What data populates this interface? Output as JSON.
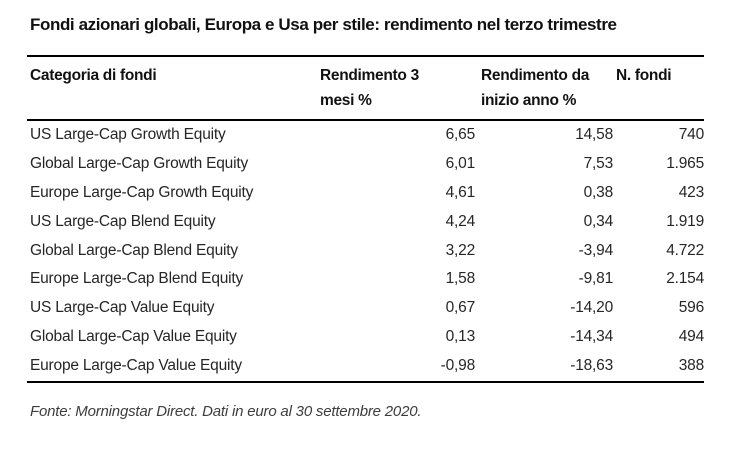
{
  "title": "Fondi azionari globali, Europa e Usa per stile: rendimento nel terzo trimestre",
  "table": {
    "columns": [
      {
        "label": "Categoria di fondi"
      },
      {
        "label": "Rendimento 3\nmesi %"
      },
      {
        "label": "Rendimento da\ninizio anno %"
      },
      {
        "label": "N. fondi"
      }
    ],
    "rows": [
      [
        "US Large-Cap Growth Equity",
        "6,65",
        "14,58",
        "740"
      ],
      [
        "Global Large-Cap Growth Equity",
        "6,01",
        "7,53",
        "1.965"
      ],
      [
        "Europe Large-Cap Growth Equity",
        "4,61",
        "0,38",
        "423"
      ],
      [
        "US Large-Cap Blend Equity",
        "4,24",
        "0,34",
        "1.919"
      ],
      [
        "Global Large-Cap Blend Equity",
        "3,22",
        "-3,94",
        "4.722"
      ],
      [
        "Europe Large-Cap Blend Equity",
        "1,58",
        "-9,81",
        "2.154"
      ],
      [
        "US Large-Cap Value Equity",
        "0,67",
        "-14,20",
        "596"
      ],
      [
        "Global Large-Cap Value Equity",
        "0,13",
        "-14,34",
        "494"
      ],
      [
        "Europe Large-Cap Value Equity",
        "-0,98",
        "-18,63",
        "388"
      ]
    ]
  },
  "footer": "Fonte: Morningstar Direct. Dati in euro al 30 settembre 2020.",
  "colors": {
    "background": "#ffffff",
    "text": "#262626",
    "heading_text": "#111111",
    "rule": "#000000",
    "footer_text": "#3d3d3d"
  },
  "chart_data": {
    "type": "table",
    "title": "Fondi azionari globali, Europa e Usa per stile: rendimento nel terzo trimestre",
    "columns": [
      "Categoria di fondi",
      "Rendimento 3 mesi %",
      "Rendimento da inizio anno %",
      "N. fondi"
    ],
    "categories": [
      "US Large-Cap Growth Equity",
      "Global Large-Cap Growth Equity",
      "Europe Large-Cap Growth Equity",
      "US Large-Cap Blend Equity",
      "Global Large-Cap Blend Equity",
      "Europe Large-Cap Blend Equity",
      "US Large-Cap Value Equity",
      "Global Large-Cap Value Equity",
      "Europe Large-Cap Value Equity"
    ],
    "series": [
      {
        "name": "Rendimento 3 mesi %",
        "values": [
          6.65,
          6.01,
          4.61,
          4.24,
          3.22,
          1.58,
          0.67,
          0.13,
          -0.98
        ]
      },
      {
        "name": "Rendimento da inizio anno %",
        "values": [
          14.58,
          7.53,
          0.38,
          0.34,
          -3.94,
          -9.81,
          -14.2,
          -14.34,
          -18.63
        ]
      },
      {
        "name": "N. fondi",
        "values": [
          740,
          1965,
          423,
          1919,
          4722,
          2154,
          596,
          494,
          388
        ]
      }
    ],
    "number_format": "it-IT (decimal comma, thousands dot)",
    "source_note": "Fonte: Morningstar Direct. Dati in euro al 30 settembre 2020."
  }
}
